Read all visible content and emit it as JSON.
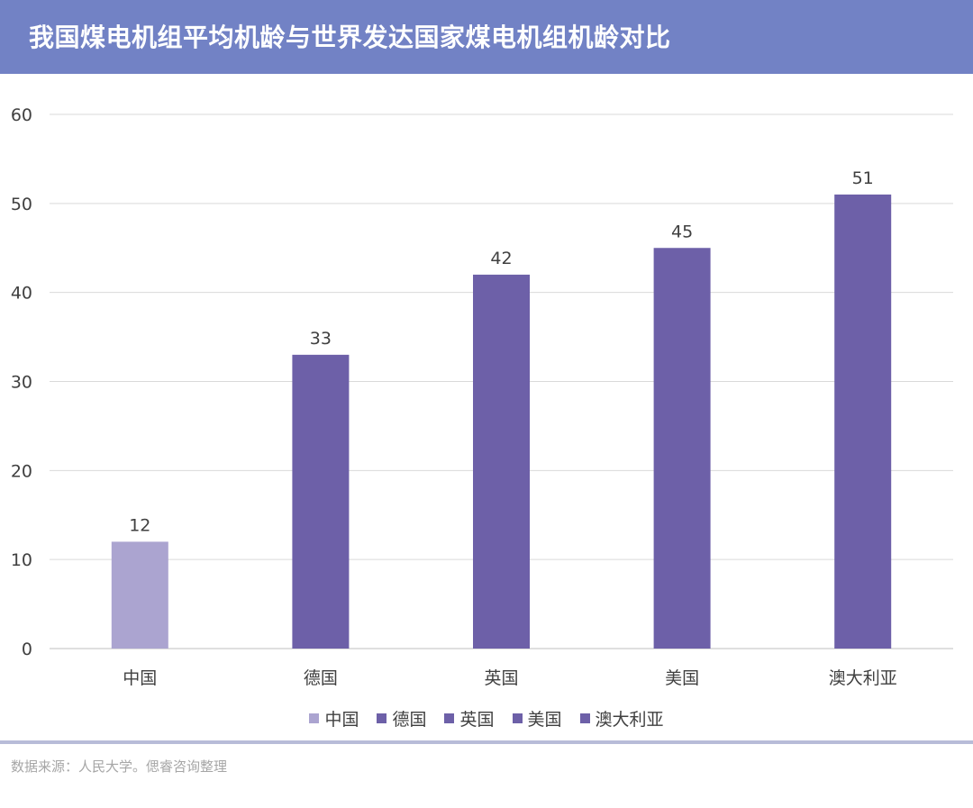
{
  "title": "我国煤电机组平均机龄与世界发达国家煤电机组机龄对比",
  "source": "数据来源：人民大学。偲睿咨询整理",
  "colors": {
    "header": "#7282c5",
    "bar_highlight": "#aba4d0",
    "bar": "#6d60a8",
    "grid": "#d9d9d9",
    "text": "#404040"
  },
  "chart_data": {
    "type": "bar",
    "categories": [
      "中国",
      "德国",
      "英国",
      "美国",
      "澳大利亚"
    ],
    "values": [
      12,
      33,
      42,
      45,
      51
    ],
    "yticks": [
      0,
      10,
      20,
      30,
      40,
      50,
      60
    ],
    "ylim": [
      0,
      60
    ],
    "grid": true,
    "data_labels": true,
    "legend_position": "bottom",
    "bar_colors": [
      "#aba4d0",
      "#6d60a8",
      "#6d60a8",
      "#6d60a8",
      "#6d60a8"
    ]
  }
}
